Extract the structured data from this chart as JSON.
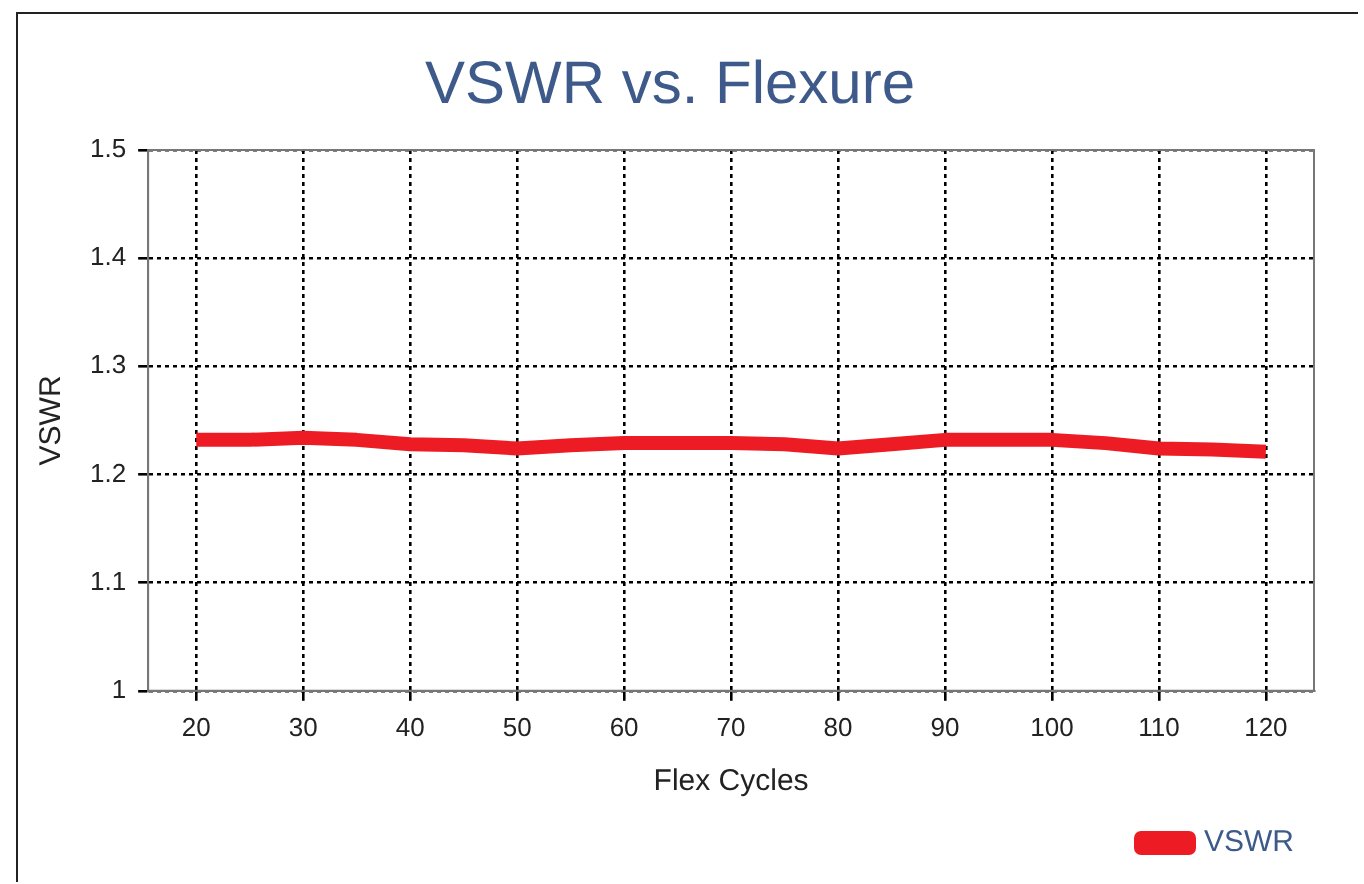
{
  "chart_data": {
    "type": "line",
    "title": "VSWR vs. Flexure",
    "xlabel": "Flex Cycles",
    "ylabel": "VSWR",
    "x": [
      20,
      25,
      30,
      35,
      40,
      45,
      50,
      55,
      60,
      65,
      70,
      75,
      80,
      85,
      90,
      95,
      100,
      105,
      110,
      115,
      120
    ],
    "series": [
      {
        "name": "VSWR",
        "color": "#ed1c24",
        "values": [
          1.232,
          1.232,
          1.234,
          1.232,
          1.228,
          1.227,
          1.224,
          1.227,
          1.229,
          1.229,
          1.229,
          1.228,
          1.224,
          1.228,
          1.232,
          1.232,
          1.232,
          1.229,
          1.224,
          1.223,
          1.221
        ]
      }
    ],
    "xlim": [
      15.5,
      124.5
    ],
    "xticks": [
      20,
      30,
      40,
      50,
      60,
      70,
      80,
      90,
      100,
      110,
      120
    ],
    "ylim": [
      1,
      1.5
    ],
    "yticks": [
      1,
      1.1,
      1.2,
      1.3,
      1.4,
      1.5
    ],
    "grid": true,
    "legend": "bottom right",
    "marker": "none",
    "line_style": "solid"
  }
}
